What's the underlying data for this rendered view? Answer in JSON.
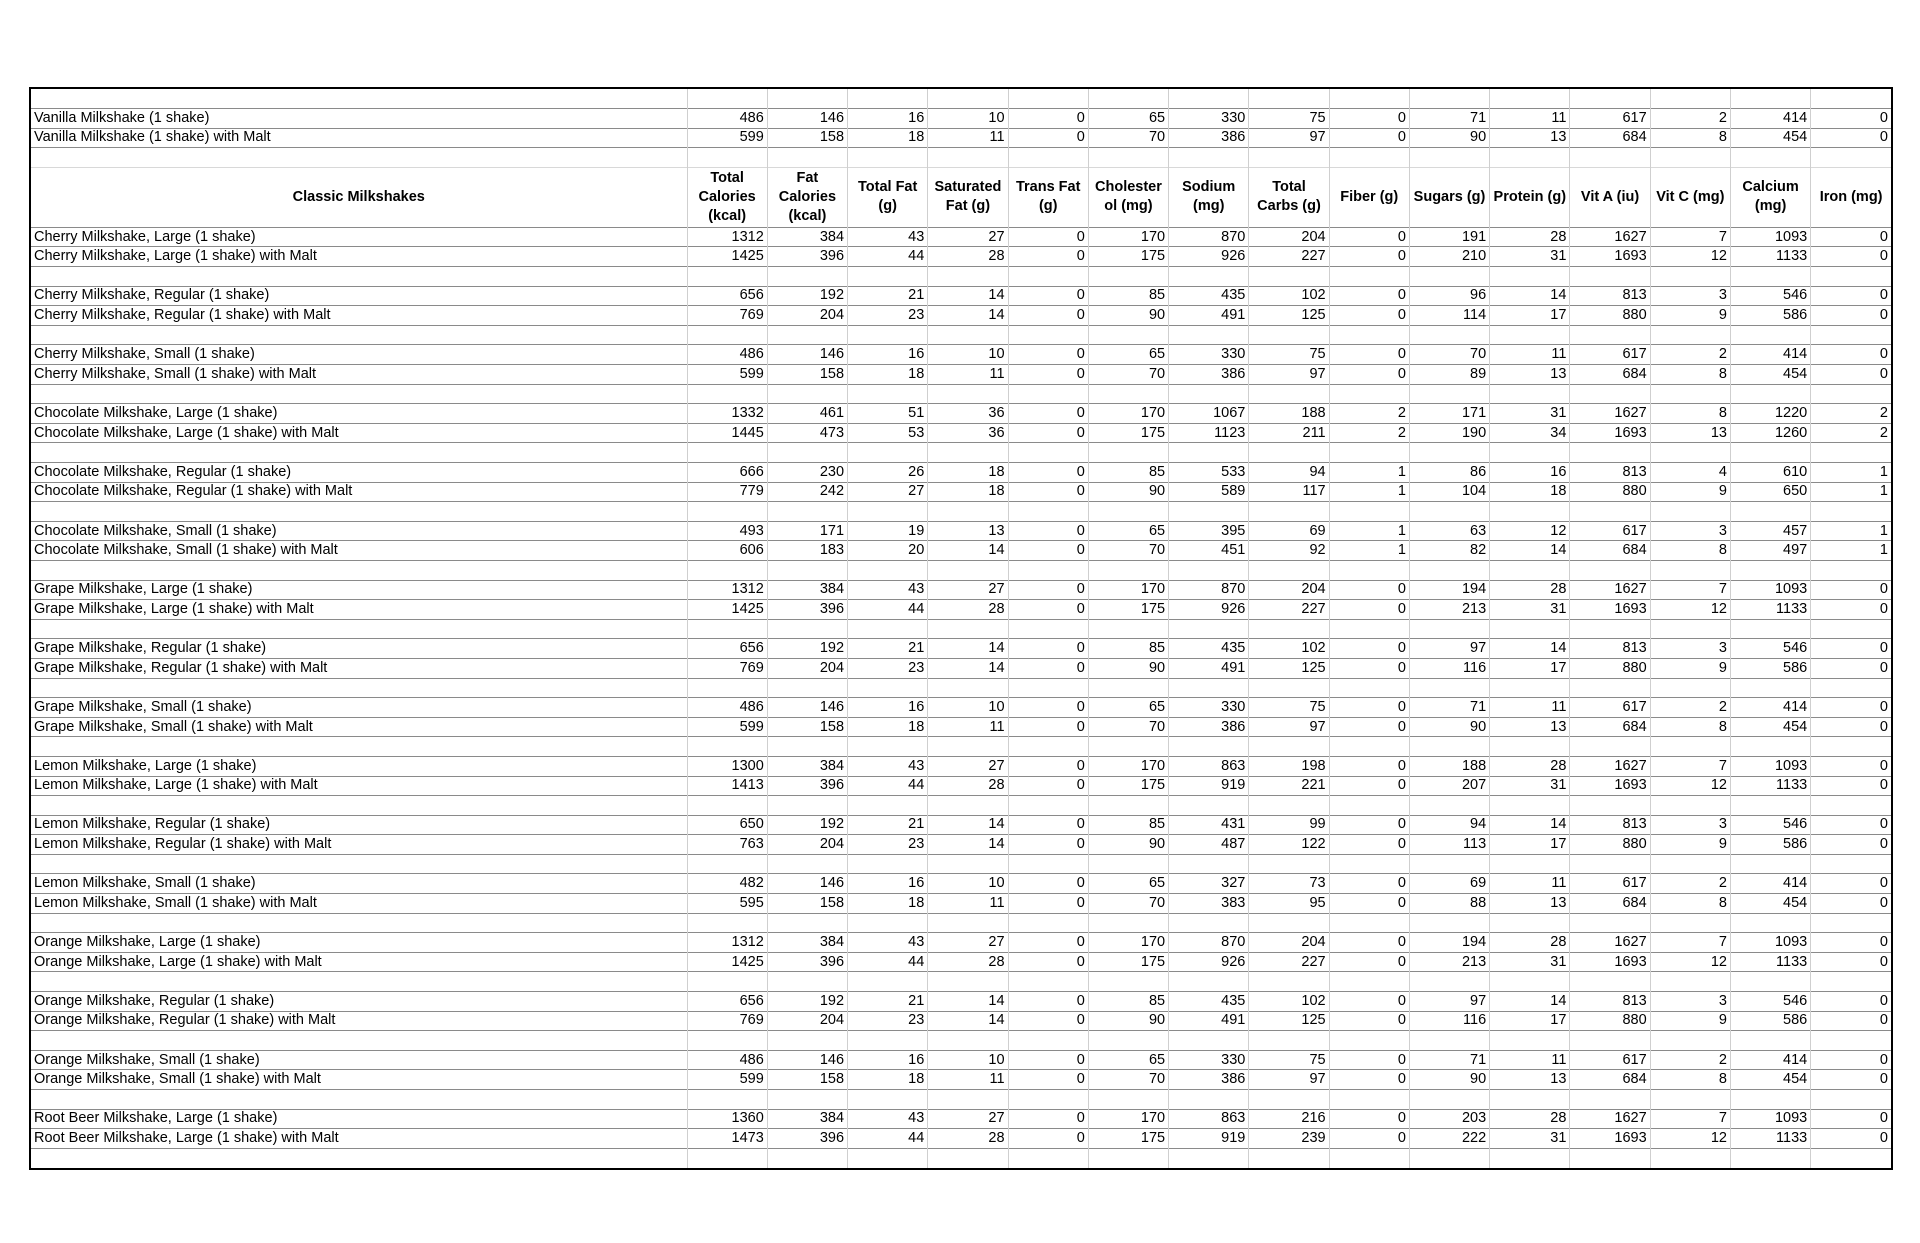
{
  "section_title": "Classic Milkshakes",
  "columns": [
    "Total Calories (kcal)",
    "Fat Calories (kcal)",
    "Total Fat (g)",
    "Saturated Fat (g)",
    "Trans Fat (g)",
    "Cholester ol (mg)",
    "Sodium (mg)",
    "Total Carbs (g)",
    "Fiber (g)",
    "Sugars (g)",
    "Protein (g)",
    "Vit A (iu)",
    "Vit C (mg)",
    "Calcium (mg)",
    "Iron (mg)"
  ],
  "top_rows": [
    {
      "name": "Vanilla Milkshake (1 shake)",
      "values": [
        486,
        146,
        16,
        10,
        0,
        65,
        330,
        75,
        0,
        71,
        11,
        617,
        2,
        414,
        0
      ]
    },
    {
      "name": "Vanilla Milkshake (1 shake) with Malt",
      "values": [
        599,
        158,
        18,
        11,
        0,
        70,
        386,
        97,
        0,
        90,
        13,
        684,
        8,
        454,
        0
      ]
    }
  ],
  "groups": [
    [
      {
        "name": "Cherry Milkshake, Large (1 shake)",
        "values": [
          1312,
          384,
          43,
          27,
          0,
          170,
          870,
          204,
          0,
          191,
          28,
          1627,
          7,
          1093,
          0
        ]
      },
      {
        "name": "Cherry Milkshake, Large (1 shake) with Malt",
        "values": [
          1425,
          396,
          44,
          28,
          0,
          175,
          926,
          227,
          0,
          210,
          31,
          1693,
          12,
          1133,
          0
        ]
      }
    ],
    [
      {
        "name": "Cherry Milkshake, Regular (1 shake)",
        "values": [
          656,
          192,
          21,
          14,
          0,
          85,
          435,
          102,
          0,
          96,
          14,
          813,
          3,
          546,
          0
        ]
      },
      {
        "name": "Cherry Milkshake, Regular (1 shake) with Malt",
        "values": [
          769,
          204,
          23,
          14,
          0,
          90,
          491,
          125,
          0,
          114,
          17,
          880,
          9,
          586,
          0
        ]
      }
    ],
    [
      {
        "name": "Cherry Milkshake, Small (1 shake)",
        "values": [
          486,
          146,
          16,
          10,
          0,
          65,
          330,
          75,
          0,
          70,
          11,
          617,
          2,
          414,
          0
        ]
      },
      {
        "name": "Cherry Milkshake, Small (1 shake) with Malt",
        "values": [
          599,
          158,
          18,
          11,
          0,
          70,
          386,
          97,
          0,
          89,
          13,
          684,
          8,
          454,
          0
        ]
      }
    ],
    [
      {
        "name": "Chocolate Milkshake, Large (1 shake)",
        "values": [
          1332,
          461,
          51,
          36,
          0,
          170,
          1067,
          188,
          2,
          171,
          31,
          1627,
          8,
          1220,
          2
        ]
      },
      {
        "name": "Chocolate Milkshake, Large (1 shake) with Malt",
        "values": [
          1445,
          473,
          53,
          36,
          0,
          175,
          1123,
          211,
          2,
          190,
          34,
          1693,
          13,
          1260,
          2
        ]
      }
    ],
    [
      {
        "name": "Chocolate Milkshake, Regular (1 shake)",
        "values": [
          666,
          230,
          26,
          18,
          0,
          85,
          533,
          94,
          1,
          86,
          16,
          813,
          4,
          610,
          1
        ]
      },
      {
        "name": "Chocolate Milkshake, Regular (1 shake) with Malt",
        "values": [
          779,
          242,
          27,
          18,
          0,
          90,
          589,
          117,
          1,
          104,
          18,
          880,
          9,
          650,
          1
        ]
      }
    ],
    [
      {
        "name": "Chocolate Milkshake, Small (1 shake)",
        "values": [
          493,
          171,
          19,
          13,
          0,
          65,
          395,
          69,
          1,
          63,
          12,
          617,
          3,
          457,
          1
        ]
      },
      {
        "name": "Chocolate Milkshake, Small (1 shake) with Malt",
        "values": [
          606,
          183,
          20,
          14,
          0,
          70,
          451,
          92,
          1,
          82,
          14,
          684,
          8,
          497,
          1
        ]
      }
    ],
    [
      {
        "name": "Grape Milkshake, Large (1 shake)",
        "values": [
          1312,
          384,
          43,
          27,
          0,
          170,
          870,
          204,
          0,
          194,
          28,
          1627,
          7,
          1093,
          0
        ]
      },
      {
        "name": "Grape Milkshake, Large (1 shake) with Malt",
        "values": [
          1425,
          396,
          44,
          28,
          0,
          175,
          926,
          227,
          0,
          213,
          31,
          1693,
          12,
          1133,
          0
        ]
      }
    ],
    [
      {
        "name": "Grape Milkshake, Regular (1 shake)",
        "values": [
          656,
          192,
          21,
          14,
          0,
          85,
          435,
          102,
          0,
          97,
          14,
          813,
          3,
          546,
          0
        ]
      },
      {
        "name": "Grape Milkshake, Regular (1 shake) with Malt",
        "values": [
          769,
          204,
          23,
          14,
          0,
          90,
          491,
          125,
          0,
          116,
          17,
          880,
          9,
          586,
          0
        ]
      }
    ],
    [
      {
        "name": "Grape Milkshake, Small (1 shake)",
        "values": [
          486,
          146,
          16,
          10,
          0,
          65,
          330,
          75,
          0,
          71,
          11,
          617,
          2,
          414,
          0
        ]
      },
      {
        "name": "Grape Milkshake, Small (1 shake) with Malt",
        "values": [
          599,
          158,
          18,
          11,
          0,
          70,
          386,
          97,
          0,
          90,
          13,
          684,
          8,
          454,
          0
        ]
      }
    ],
    [
      {
        "name": "Lemon Milkshake, Large (1 shake)",
        "values": [
          1300,
          384,
          43,
          27,
          0,
          170,
          863,
          198,
          0,
          188,
          28,
          1627,
          7,
          1093,
          0
        ]
      },
      {
        "name": "Lemon Milkshake, Large (1 shake) with Malt",
        "values": [
          1413,
          396,
          44,
          28,
          0,
          175,
          919,
          221,
          0,
          207,
          31,
          1693,
          12,
          1133,
          0
        ]
      }
    ],
    [
      {
        "name": "Lemon Milkshake, Regular (1 shake)",
        "values": [
          650,
          192,
          21,
          14,
          0,
          85,
          431,
          99,
          0,
          94,
          14,
          813,
          3,
          546,
          0
        ]
      },
      {
        "name": "Lemon Milkshake, Regular (1 shake) with Malt",
        "values": [
          763,
          204,
          23,
          14,
          0,
          90,
          487,
          122,
          0,
          113,
          17,
          880,
          9,
          586,
          0
        ]
      }
    ],
    [
      {
        "name": "Lemon Milkshake, Small (1 shake)",
        "values": [
          482,
          146,
          16,
          10,
          0,
          65,
          327,
          73,
          0,
          69,
          11,
          617,
          2,
          414,
          0
        ]
      },
      {
        "name": "Lemon Milkshake, Small (1 shake) with Malt",
        "values": [
          595,
          158,
          18,
          11,
          0,
          70,
          383,
          95,
          0,
          88,
          13,
          684,
          8,
          454,
          0
        ]
      }
    ],
    [
      {
        "name": "Orange Milkshake, Large (1 shake)",
        "values": [
          1312,
          384,
          43,
          27,
          0,
          170,
          870,
          204,
          0,
          194,
          28,
          1627,
          7,
          1093,
          0
        ]
      },
      {
        "name": "Orange Milkshake, Large (1 shake) with Malt",
        "values": [
          1425,
          396,
          44,
          28,
          0,
          175,
          926,
          227,
          0,
          213,
          31,
          1693,
          12,
          1133,
          0
        ]
      }
    ],
    [
      {
        "name": "Orange Milkshake, Regular (1 shake)",
        "values": [
          656,
          192,
          21,
          14,
          0,
          85,
          435,
          102,
          0,
          97,
          14,
          813,
          3,
          546,
          0
        ]
      },
      {
        "name": "Orange Milkshake, Regular (1 shake) with Malt",
        "values": [
          769,
          204,
          23,
          14,
          0,
          90,
          491,
          125,
          0,
          116,
          17,
          880,
          9,
          586,
          0
        ]
      }
    ],
    [
      {
        "name": "Orange Milkshake, Small (1 shake)",
        "values": [
          486,
          146,
          16,
          10,
          0,
          65,
          330,
          75,
          0,
          71,
          11,
          617,
          2,
          414,
          0
        ]
      },
      {
        "name": "Orange Milkshake, Small (1 shake) with Malt",
        "values": [
          599,
          158,
          18,
          11,
          0,
          70,
          386,
          97,
          0,
          90,
          13,
          684,
          8,
          454,
          0
        ]
      }
    ],
    [
      {
        "name": "Root Beer Milkshake, Large (1 shake)",
        "values": [
          1360,
          384,
          43,
          27,
          0,
          170,
          863,
          216,
          0,
          203,
          28,
          1627,
          7,
          1093,
          0
        ]
      },
      {
        "name": "Root Beer Milkshake, Large (1 shake) with Malt",
        "values": [
          1473,
          396,
          44,
          28,
          0,
          175,
          919,
          239,
          0,
          222,
          31,
          1693,
          12,
          1133,
          0
        ]
      }
    ]
  ]
}
